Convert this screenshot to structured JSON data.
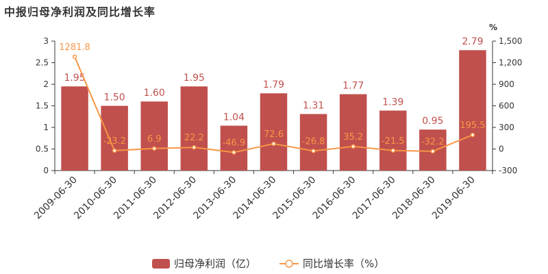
{
  "chart_data": {
    "type": "bar+line",
    "title": "中报归母净利润及同比增长率",
    "categories": [
      "2009-06-30",
      "2010-06-30",
      "2011-06-30",
      "2012-06-30",
      "2013-06-30",
      "2014-06-30",
      "2015-06-30",
      "2016-06-30",
      "2017-06-30",
      "2018-06-30",
      "2019-06-30"
    ],
    "series": [
      {
        "name": "归母净利润（亿）",
        "type": "bar",
        "axis": "left",
        "color": "#c0504d",
        "values": [
          1.95,
          1.5,
          1.6,
          1.95,
          1.04,
          1.79,
          1.31,
          1.77,
          1.39,
          0.95,
          2.79
        ],
        "labels": [
          "1.95",
          "1.50",
          "1.60",
          "1.95",
          "1.04",
          "1.79",
          "1.31",
          "1.77",
          "1.39",
          "0.95",
          "2.79"
        ]
      },
      {
        "name": "同比增长率（%）",
        "type": "line",
        "axis": "right",
        "color": "#f79646",
        "values": [
          1281.8,
          -23.2,
          6.9,
          22.2,
          -46.9,
          72.6,
          -26.8,
          35.2,
          -21.5,
          -32.2,
          195.5
        ],
        "labels": [
          "1281.8",
          "-23.2",
          "6.9",
          "22.2",
          "-46.9",
          "72.6",
          "-26.8",
          "35.2",
          "-21.5",
          "-32.2",
          "195.5"
        ]
      }
    ],
    "left_axis": {
      "min": 0,
      "max": 3,
      "ticks": [
        "0",
        "0.5",
        "1",
        "1.5",
        "2",
        "2.5",
        "3"
      ],
      "tick_values": [
        0,
        0.5,
        1,
        1.5,
        2,
        2.5,
        3
      ]
    },
    "right_axis": {
      "unit": "%",
      "min": -300,
      "max": 1500,
      "ticks": [
        "-300",
        "0",
        "300",
        "600",
        "900",
        "1,200",
        "1,500"
      ],
      "tick_values": [
        -300,
        0,
        300,
        600,
        900,
        1200,
        1500
      ]
    },
    "legend": {
      "position": "bottom"
    },
    "grid": false
  }
}
